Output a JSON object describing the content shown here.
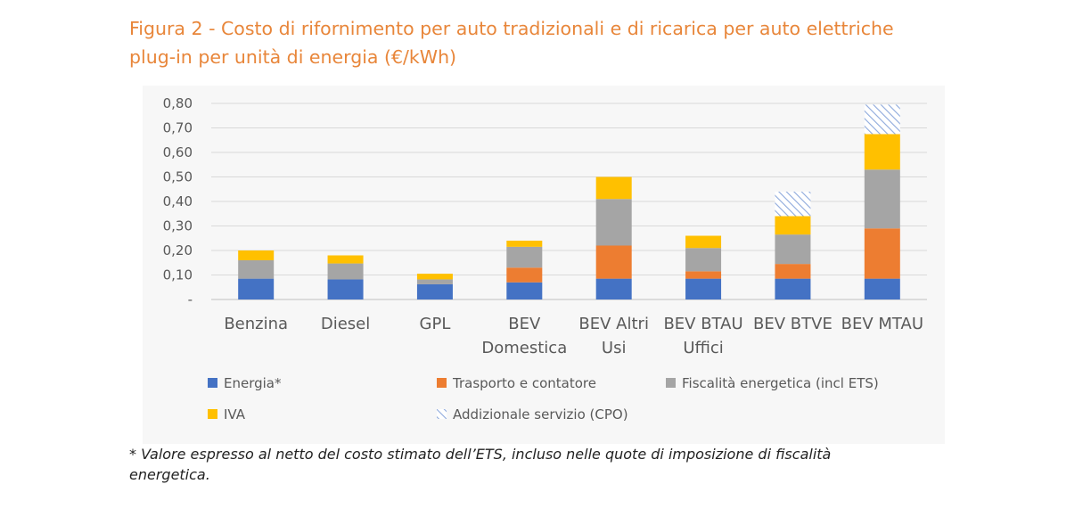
{
  "title_lines": [
    "Figura 2 - Costo di rifornimento per auto tradizionali e di ricarica per auto elettriche",
    "plug-in per unità di energia (€/kWh)"
  ],
  "footnote_lines": [
    "* Valore espresso al netto del costo stimato dell’ETS, incluso nelle quote di imposizione di fiscalità",
    "energetica."
  ],
  "chart_data": {
    "type": "bar",
    "stacked": true,
    "categories": [
      [
        "Benzina"
      ],
      [
        "Diesel"
      ],
      [
        "GPL"
      ],
      [
        "BEV",
        "Domestica"
      ],
      [
        "BEV Altri",
        "Usi"
      ],
      [
        "BEV BTAU",
        "Uffici"
      ],
      [
        "BEV BTVE"
      ],
      [
        "BEV MTAU"
      ]
    ],
    "series": [
      {
        "name": "Energia*",
        "color": "#4472C4",
        "pattern": "solid",
        "values": [
          0.085,
          0.082,
          0.062,
          0.07,
          0.085,
          0.085,
          0.085,
          0.085
        ]
      },
      {
        "name": "Trasporto e contatore",
        "color": "#ED7D31",
        "pattern": "solid",
        "values": [
          0,
          0,
          0,
          0.06,
          0.135,
          0.03,
          0.06,
          0.205
        ]
      },
      {
        "name": "Fiscalità energetica (incl ETS)",
        "color": "#A5A5A5",
        "pattern": "solid",
        "values": [
          0.075,
          0.065,
          0.02,
          0.085,
          0.19,
          0.095,
          0.12,
          0.24
        ]
      },
      {
        "name": "IVA",
        "color": "#FFC000",
        "pattern": "solid",
        "values": [
          0.04,
          0.033,
          0.023,
          0.025,
          0.09,
          0.05,
          0.075,
          0.145
        ]
      },
      {
        "name": "Addizionale servizio (CPO)",
        "color": "#8FAADC",
        "pattern": "hatch",
        "values": [
          0,
          0,
          0,
          0,
          0,
          0,
          0.1,
          0.12
        ]
      }
    ],
    "y_ticks": [
      "-",
      "0,10",
      "0,20",
      "0,30",
      "0,40",
      "0,50",
      "0,60",
      "0,70",
      "0,80"
    ],
    "ylim": [
      0,
      0.8
    ],
    "grid": true,
    "legend_position": "bottom"
  }
}
